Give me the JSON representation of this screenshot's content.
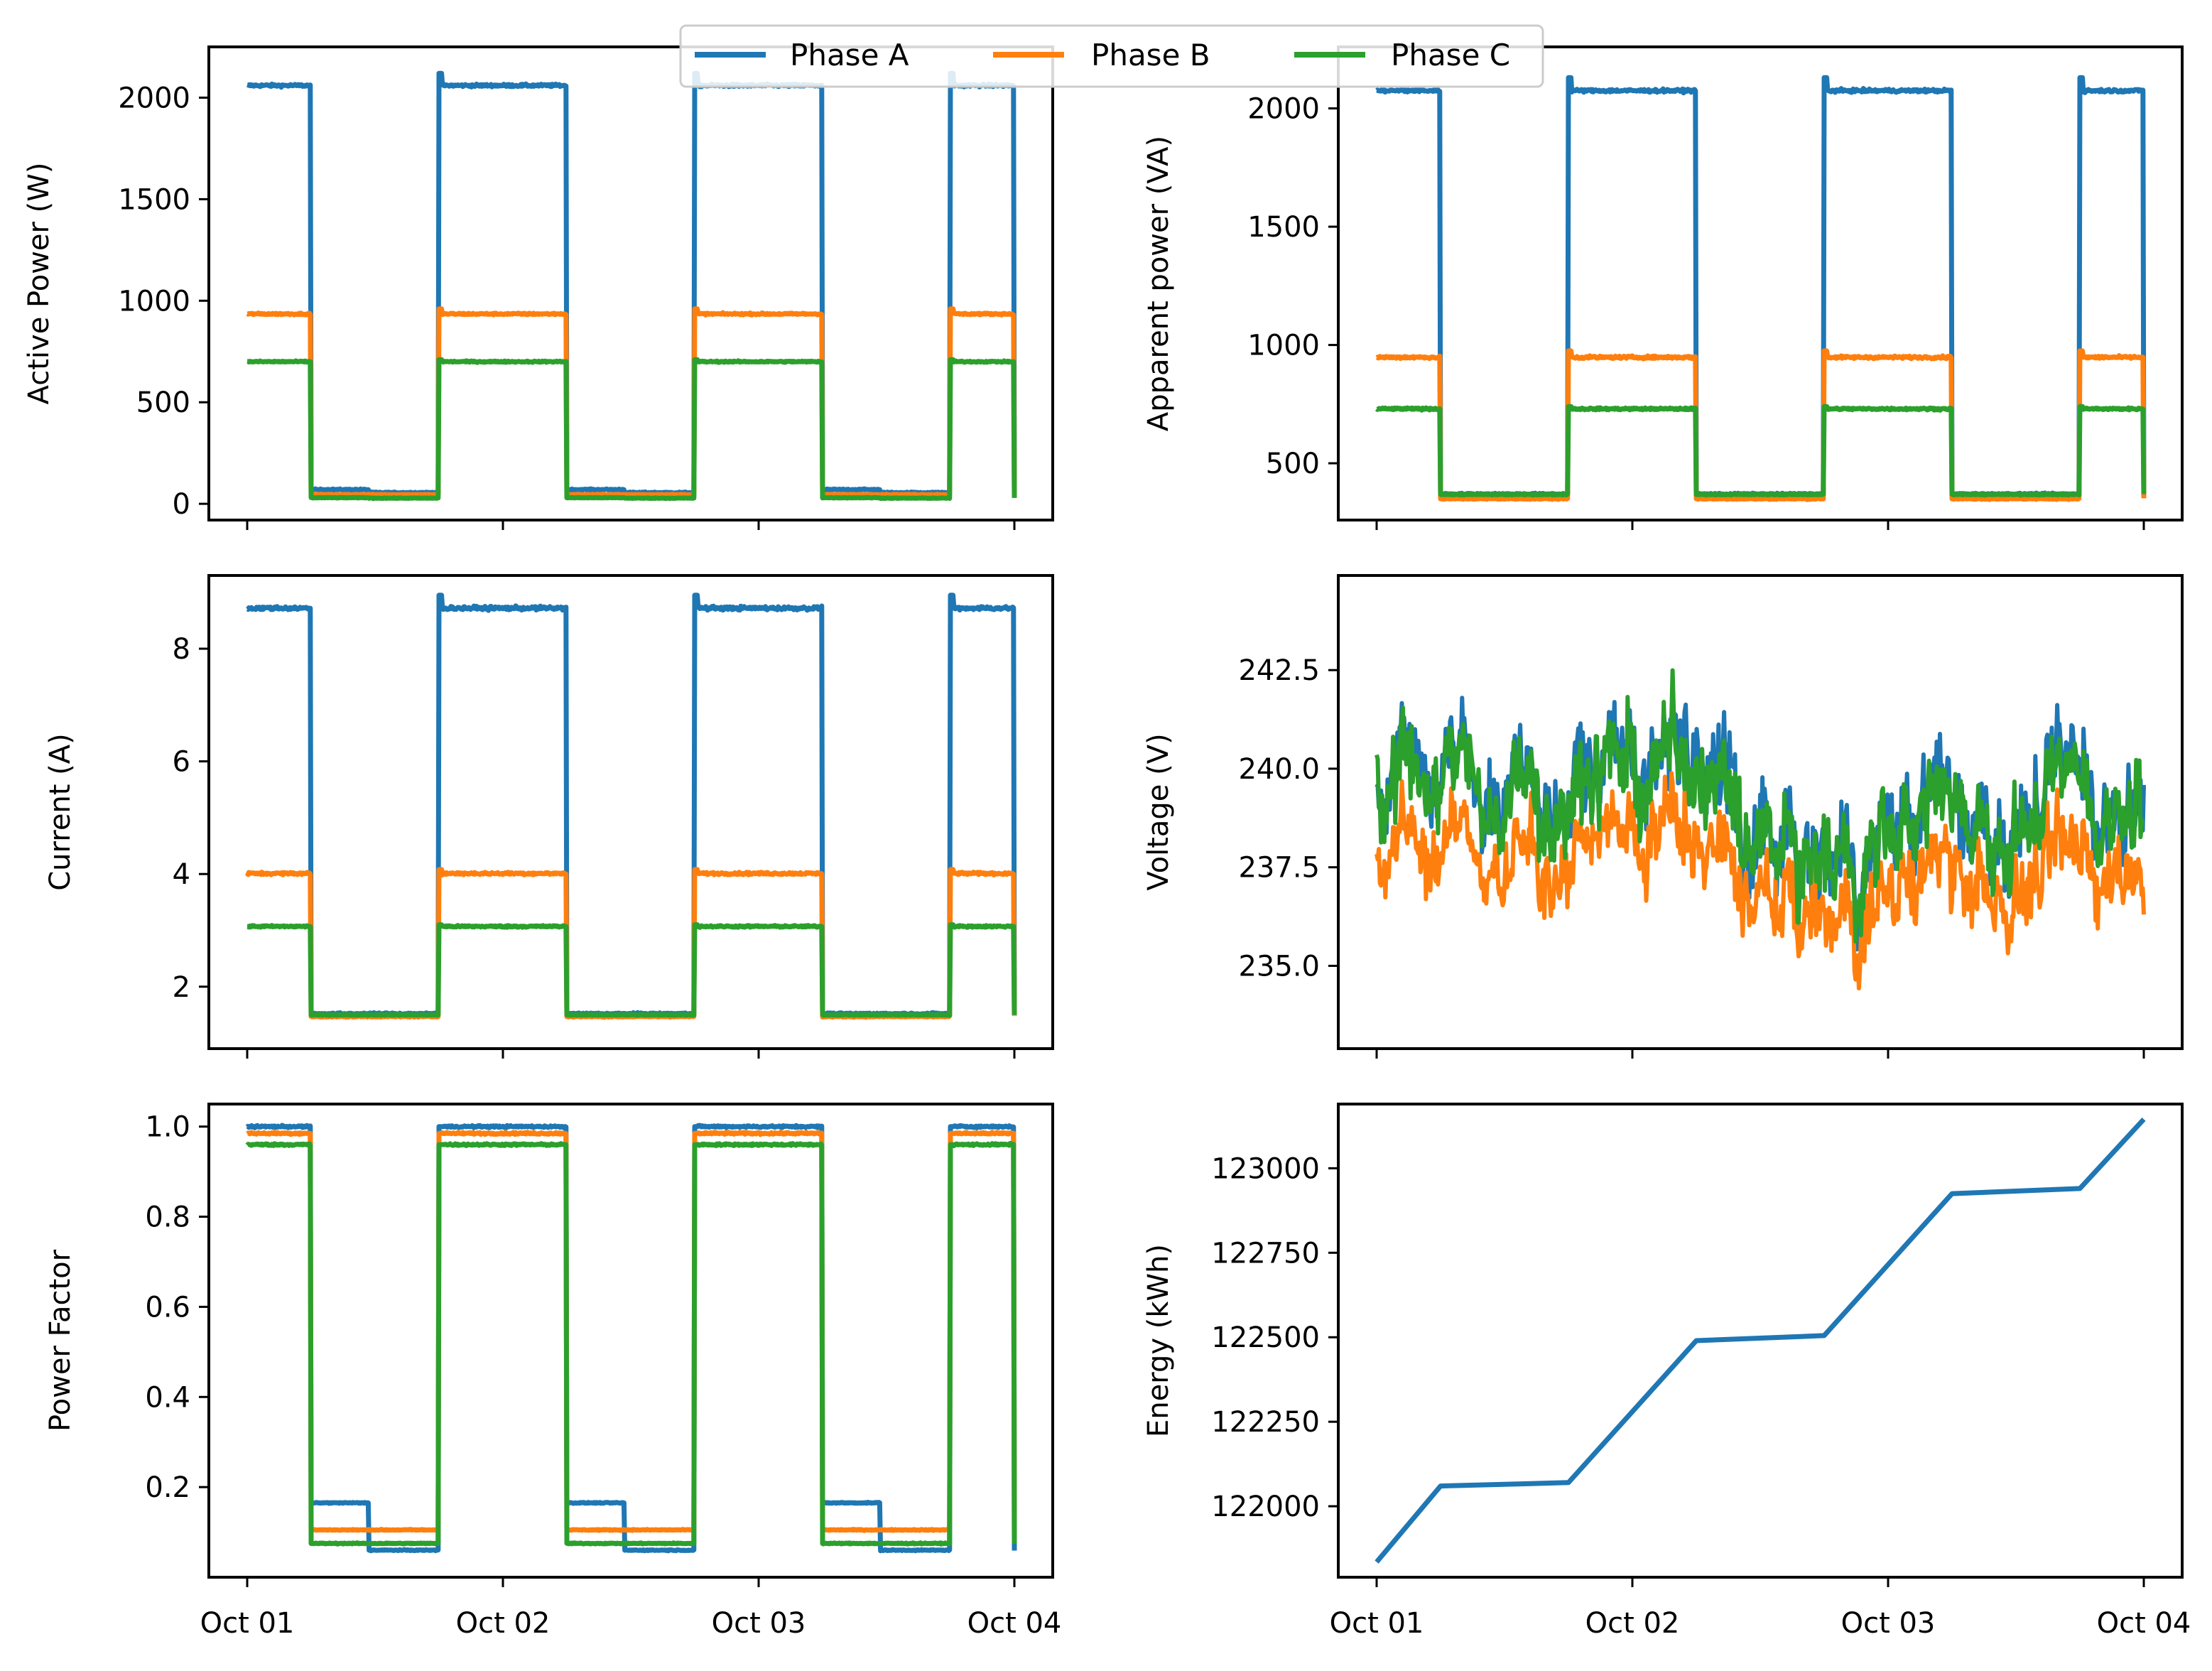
{
  "colors": {
    "phase_a": "#1f77b4",
    "phase_b": "#ff7f0e",
    "phase_c": "#2ca02c",
    "energy": "#1f77b4"
  },
  "legend": {
    "placement": "top-center",
    "entries": [
      "Phase A",
      "Phase B",
      "Phase C"
    ]
  },
  "chart_data": [
    {
      "id": "active_power",
      "type": "line",
      "xlabel": "",
      "ylabel": "Active Power (W)",
      "xlim": [
        "2023-10-01T00:00",
        "2023-10-04T00:00"
      ],
      "ylim": [
        -80,
        2250
      ],
      "yticks": [
        0,
        500,
        1000,
        1500,
        2000
      ],
      "show_xticklabels": false,
      "series_type": "phases",
      "on_level": [
        2060,
        935,
        700
      ],
      "off_level": [
        70,
        45,
        30
      ],
      "off_level_b": [
        55,
        45,
        28
      ],
      "noise": [
        6,
        4,
        3
      ],
      "spike": [
        2120,
        960,
        710
      ]
    },
    {
      "id": "apparent_power",
      "type": "line",
      "xlabel": "",
      "ylabel": "Apparent power (VA)",
      "xlim": [
        "2023-10-01T00:00",
        "2023-10-04T00:00"
      ],
      "ylim": [
        260,
        2260
      ],
      "yticks": [
        500,
        1000,
        1500,
        2000
      ],
      "show_xticklabels": false,
      "series_type": "phases",
      "on_level": [
        2075,
        948,
        730
      ],
      "off_level": [
        370,
        350,
        368
      ],
      "off_level_b": [
        370,
        350,
        368
      ],
      "noise": [
        6,
        5,
        4
      ],
      "spike": [
        2130,
        975,
        740
      ]
    },
    {
      "id": "current",
      "type": "line",
      "xlabel": "",
      "ylabel": "Current (A)",
      "xlim": [
        "2023-10-01T00:00",
        "2023-10-04T00:00"
      ],
      "ylim": [
        0.9,
        9.3
      ],
      "yticks": [
        2,
        4,
        6,
        8
      ],
      "show_xticklabels": false,
      "series_type": "phases",
      "on_level": [
        8.72,
        4.01,
        3.07
      ],
      "off_level": [
        1.52,
        1.47,
        1.5
      ],
      "off_level_b": [
        1.52,
        1.47,
        1.5
      ],
      "noise": [
        0.03,
        0.02,
        0.015
      ],
      "spike": [
        8.95,
        4.08,
        3.1
      ]
    },
    {
      "id": "voltage",
      "type": "line",
      "xlabel": "",
      "ylabel": "Voltage (V)",
      "xlim": [
        "2023-10-01T00:00",
        "2023-10-04T00:00"
      ],
      "ylim": [
        232.9,
        244.9
      ],
      "yticks": [
        235.0,
        237.5,
        240.0,
        242.5
      ],
      "ytick_labels": [
        "235.0",
        "237.5",
        "240.0",
        "242.5"
      ],
      "show_xticklabels": false,
      "series_type": "voltage",
      "mean": [
        239.2,
        237.4,
        239.0
      ],
      "spread": [
        1.6,
        1.3,
        1.5
      ]
    },
    {
      "id": "power_factor",
      "type": "line",
      "xlabel": "",
      "ylabel": "Power Factor",
      "xlim": [
        "2023-10-01T00:00",
        "2023-10-04T00:00"
      ],
      "ylim": [
        0.0,
        1.05
      ],
      "yticks": [
        0.2,
        0.4,
        0.6,
        0.8,
        1.0
      ],
      "ytick_labels": [
        "0.2",
        "0.4",
        "0.6",
        "0.8",
        "1.0"
      ],
      "show_xticklabels": true,
      "xticklabels": [
        "Oct 01",
        "Oct 02",
        "Oct 03",
        "Oct 04"
      ],
      "series_type": "phases",
      "on_level": [
        1.0,
        0.985,
        0.96
      ],
      "off_level": [
        0.165,
        0.105,
        0.075
      ],
      "off_level_b": [
        0.06,
        0.105,
        0.075
      ],
      "noise": [
        0.002,
        0.002,
        0.002
      ],
      "spike": [
        1.0,
        0.985,
        0.96
      ]
    },
    {
      "id": "energy",
      "type": "line",
      "xlabel": "",
      "ylabel": "Energy (kWh)",
      "xlim": [
        "2023-10-01T00:00",
        "2023-10-04T00:00"
      ],
      "ylim": [
        121790,
        123190
      ],
      "yticks": [
        122000,
        122250,
        122500,
        122750,
        123000
      ],
      "show_xticklabels": true,
      "xticklabels": [
        "Oct 01",
        "Oct 02",
        "Oct 03",
        "Oct 04"
      ],
      "series_type": "single",
      "x": [
        "2023-10-01T00:00",
        "2023-10-01T06:00",
        "2023-10-01T18:00",
        "2023-10-02T06:00",
        "2023-10-02T18:00",
        "2023-10-03T06:00",
        "2023-10-03T18:00",
        "2023-10-04T00:00"
      ],
      "y": [
        121835,
        122060,
        122070,
        122490,
        122505,
        122925,
        122940,
        123145
      ]
    }
  ],
  "schedule": {
    "on_periods": [
      [
        "2023-10-01T00:00",
        "2023-10-01T06:00"
      ],
      [
        "2023-10-01T18:00",
        "2023-10-02T06:00"
      ],
      [
        "2023-10-02T18:00",
        "2023-10-03T06:00"
      ],
      [
        "2023-10-03T18:00",
        "2023-10-04T00:00"
      ]
    ]
  }
}
